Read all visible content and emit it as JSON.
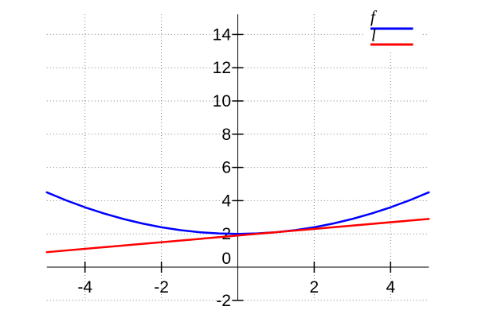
{
  "chart_data": {
    "type": "line",
    "title": "",
    "xlabel": "",
    "ylabel": "",
    "xlim": [
      -5,
      5
    ],
    "ylim": [
      -2,
      15
    ],
    "x_ticks": [
      -4,
      -2,
      2,
      4
    ],
    "y_ticks": [
      -2,
      0,
      2,
      4,
      6,
      8,
      10,
      12,
      14
    ],
    "grid": "dotted",
    "legend_position": "top-right",
    "series": [
      {
        "name": "f",
        "color": "#0000ff",
        "x": [
          -5,
          -4.5,
          -4,
          -3.5,
          -3,
          -2.5,
          -2,
          -1.5,
          -1,
          -0.5,
          0,
          0.5,
          1,
          1.5,
          2,
          2.5,
          3,
          3.5,
          4,
          4.5,
          5
        ],
        "y": [
          4.5,
          4.025,
          3.6,
          3.225,
          2.9,
          2.625,
          2.4,
          2.225,
          2.1,
          2.025,
          2.0,
          2.025,
          2.1,
          2.225,
          2.4,
          2.625,
          2.9,
          3.225,
          3.6,
          4.025,
          4.5
        ]
      },
      {
        "name": "l",
        "color": "#ff0000",
        "x": [
          -5,
          0,
          5
        ],
        "y": [
          0.9,
          1.9,
          2.9
        ]
      }
    ]
  },
  "colors": {
    "background": "#ffffff",
    "axis": "#000000",
    "grid": "#808080",
    "series_f": "#0000ff",
    "series_l": "#ff0000",
    "text": "#000000"
  }
}
